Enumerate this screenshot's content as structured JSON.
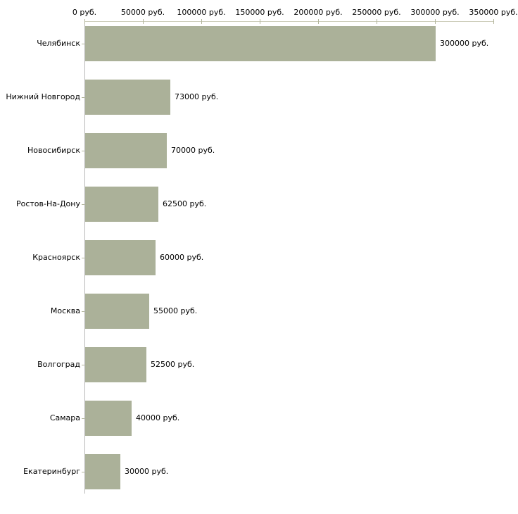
{
  "chart_data": {
    "type": "bar",
    "orientation": "horizontal",
    "title": "",
    "xlabel": "",
    "ylabel": "",
    "grid": false,
    "legend": false,
    "unit_suffix": " руб.",
    "categories": [
      "Челябинск",
      "Нижний Новгород",
      "Новосибирск",
      "Ростов-На-Дону",
      "Красноярск",
      "Москва",
      "Волгоград",
      "Самара",
      "Екатеринбург"
    ],
    "values": [
      300000,
      73000,
      70000,
      62500,
      60000,
      55000,
      52500,
      40000,
      30000
    ],
    "value_labels": [
      "300000 руб.",
      "73000 руб.",
      "70000 руб.",
      "62500 руб.",
      "60000 руб.",
      "55000 руб.",
      "52500 руб.",
      "40000 руб.",
      "30000 руб."
    ],
    "x_axis": {
      "position": "top",
      "xlim": [
        0,
        350000
      ],
      "ticks": [
        0,
        50000,
        100000,
        150000,
        200000,
        250000,
        300000,
        350000
      ],
      "tick_labels": [
        "0 руб.",
        "50000 руб.",
        "100000 руб.",
        "150000 руб.",
        "200000 руб.",
        "250000 руб.",
        "300000 руб.",
        "350000 руб."
      ]
    },
    "colors": {
      "bar_fill": "#abb199",
      "axis_line": "#cdcdbb",
      "category_axis_line": "#b8b8b8",
      "tick_mark": "#b2b59b",
      "text": "#000000",
      "background": "#ffffff"
    }
  }
}
